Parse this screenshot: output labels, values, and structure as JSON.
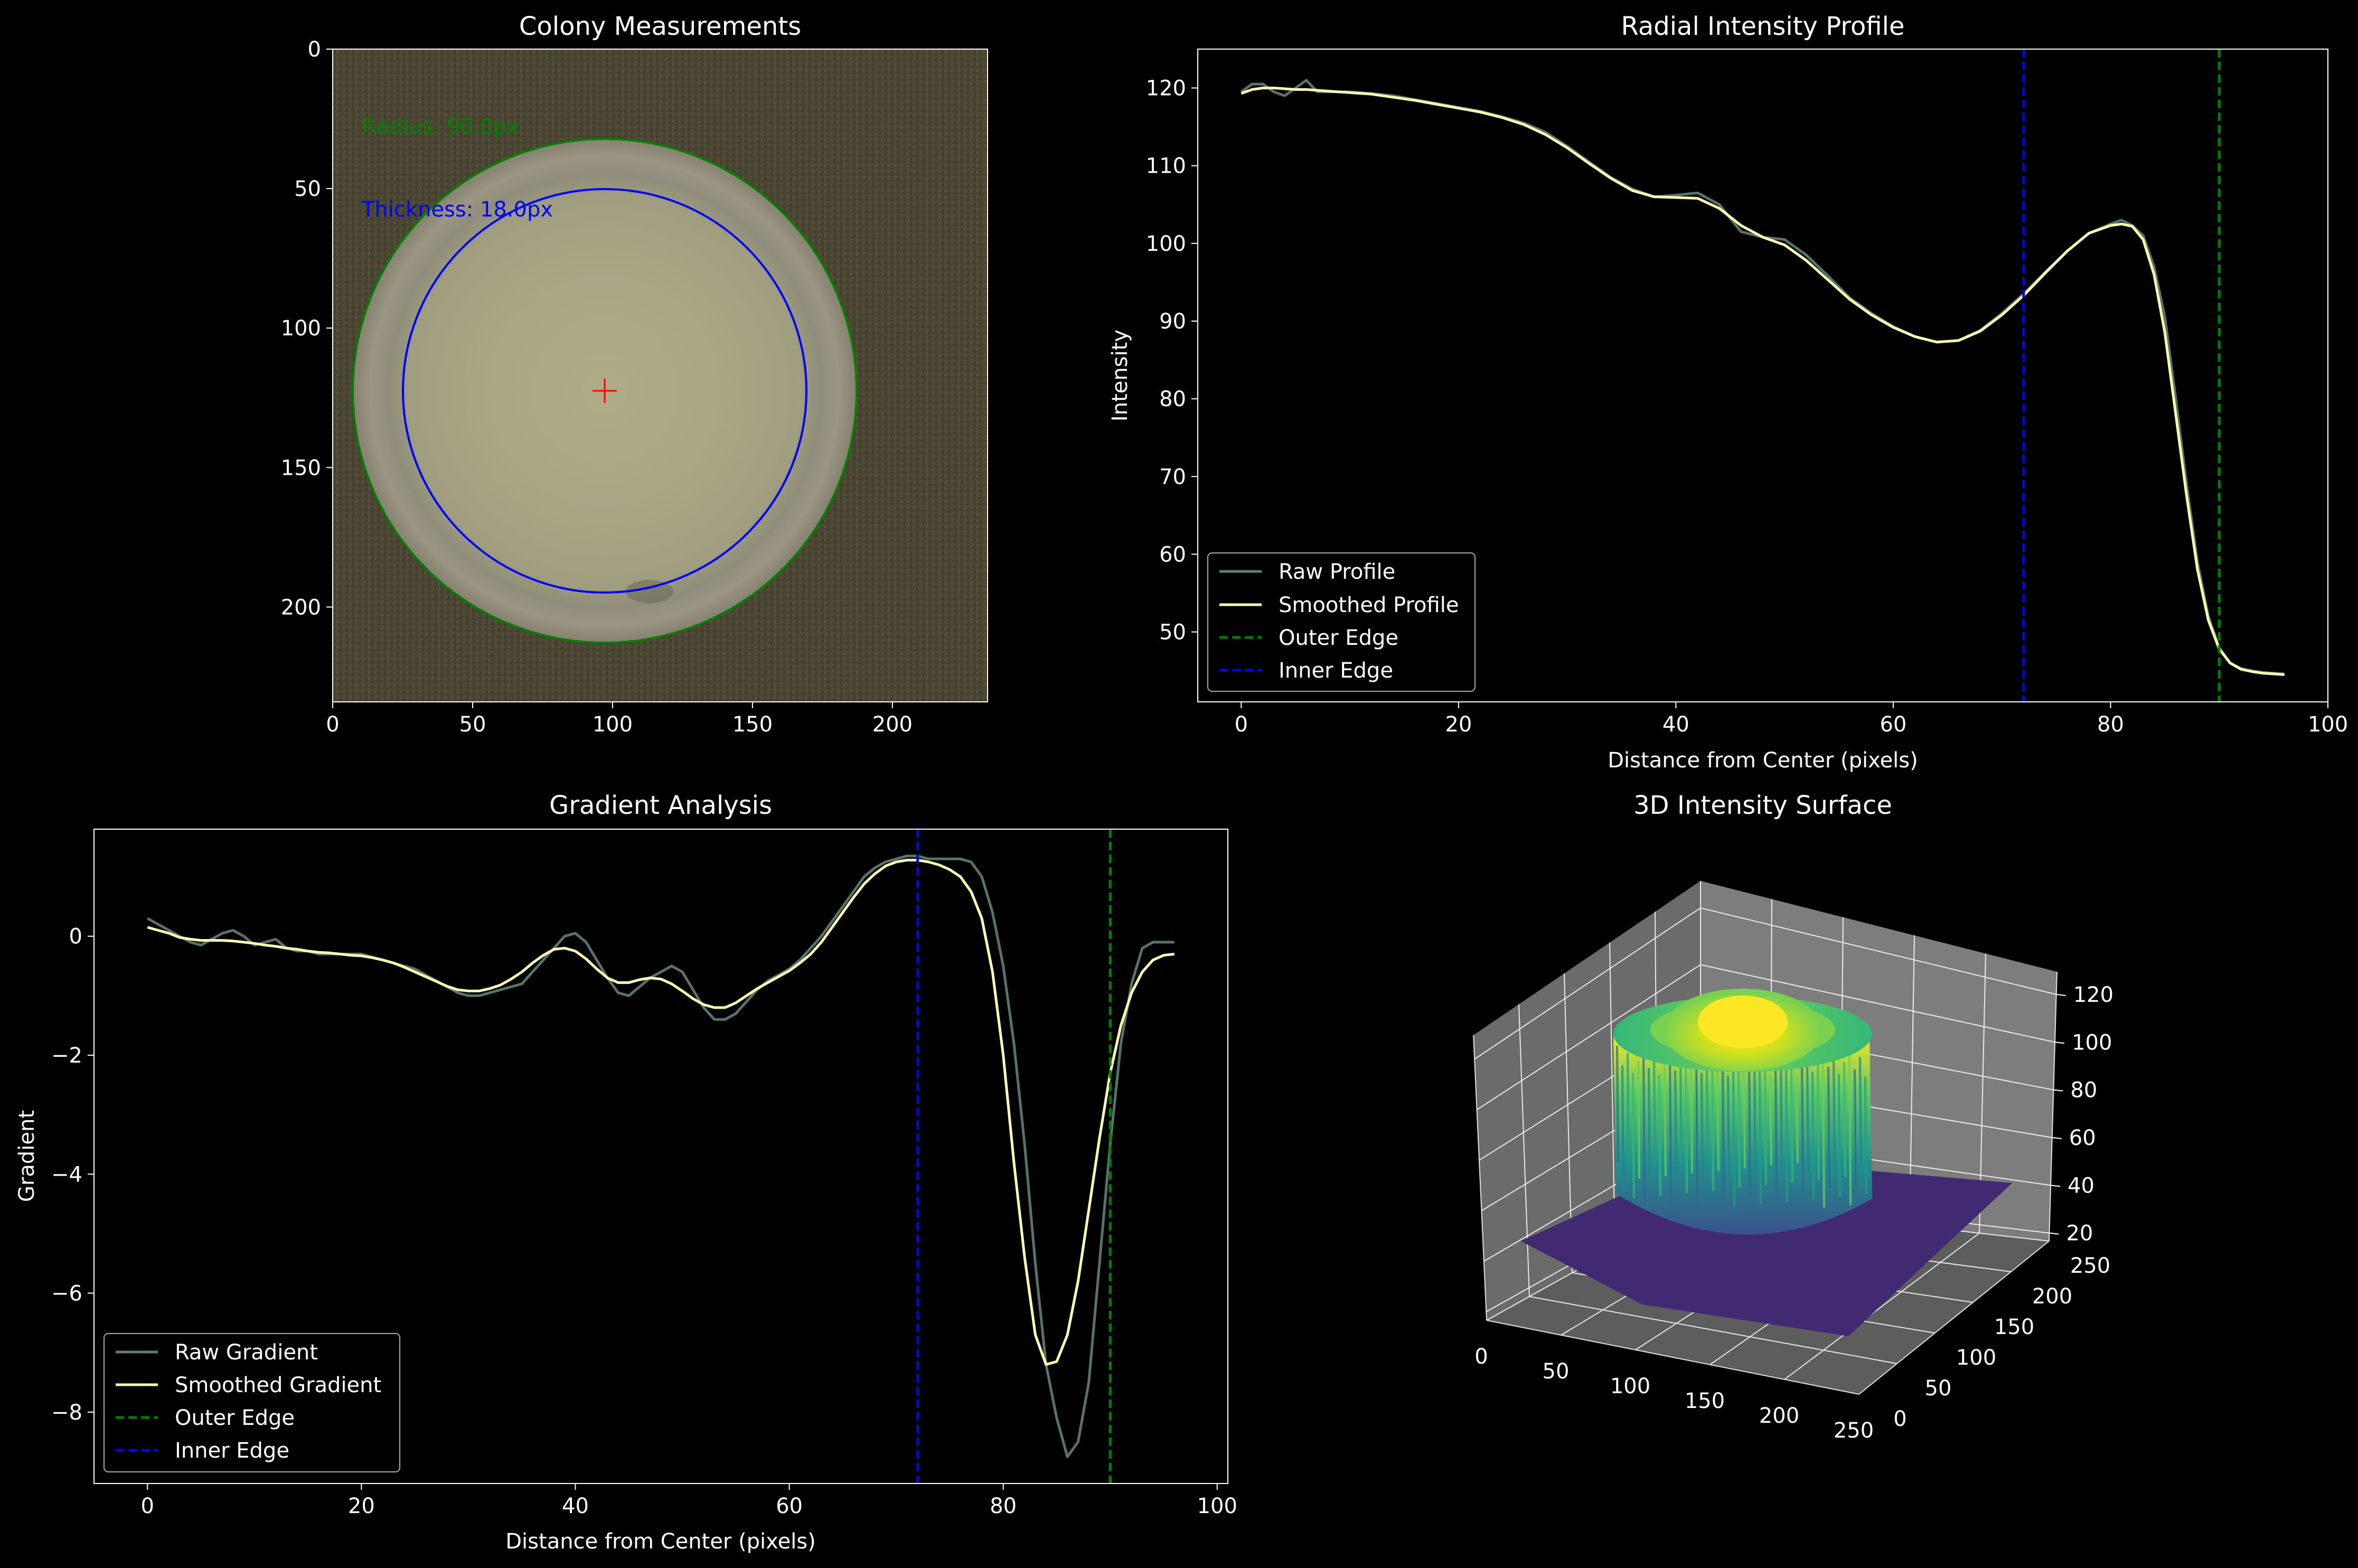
{
  "colors": {
    "background": "#000000",
    "raw": "#5f7f78",
    "smoothed": "#ffffb3",
    "outer_edge": "#008000",
    "inner_edge": "#0000ff",
    "center_marker": "#ff0000"
  },
  "chart_data": [
    {
      "type": "image",
      "title": "Colony Measurements",
      "xlim": [
        0,
        234
      ],
      "ylim": [
        234,
        0
      ],
      "xticks": [
        0,
        50,
        100,
        150,
        200
      ],
      "yticks": [
        0,
        50,
        100,
        150,
        200
      ],
      "center": [
        97,
        122
      ],
      "outer_radius": 90,
      "inner_radius": 72,
      "annotations": [
        {
          "text": "Radius: 90.0px",
          "color": "#008000"
        },
        {
          "text": "Thickness: 18.0px",
          "color": "#0000ff"
        }
      ]
    },
    {
      "type": "line",
      "title": "Radial Intensity Profile",
      "xlabel": "Distance from Center (pixels)",
      "ylabel": "Intensity",
      "xlim": [
        -4,
        100
      ],
      "ylim": [
        41,
        125
      ],
      "xticks": [
        0,
        20,
        40,
        60,
        80,
        100
      ],
      "yticks": [
        50,
        60,
        70,
        80,
        90,
        100,
        110,
        120
      ],
      "series": [
        {
          "name": "Raw Profile",
          "x": [
            0,
            1,
            2,
            3,
            4,
            5,
            6,
            7,
            8,
            10,
            12,
            14,
            16,
            18,
            20,
            22,
            24,
            26,
            28,
            30,
            32,
            34,
            36,
            38,
            40,
            42,
            44,
            46,
            48,
            50,
            52,
            54,
            56,
            58,
            60,
            62,
            64,
            66,
            68,
            70,
            72,
            74,
            76,
            78,
            80,
            81,
            82,
            83,
            84,
            85,
            86,
            87,
            88,
            89,
            90,
            91,
            92,
            93,
            94,
            95,
            96
          ],
          "values": [
            119.5,
            120.5,
            120.5,
            119.5,
            119.0,
            120.0,
            121.0,
            119.5,
            119.5,
            119.5,
            119.3,
            119.0,
            118.5,
            118.0,
            117.5,
            117.0,
            116.3,
            115.5,
            114.3,
            112.5,
            110.5,
            108.5,
            107.0,
            106.0,
            106.2,
            106.5,
            105.0,
            101.5,
            100.8,
            100.5,
            98.5,
            95.8,
            93.0,
            91.0,
            89.3,
            88.0,
            87.3,
            87.5,
            88.8,
            91.0,
            93.5,
            96.3,
            99.0,
            101.3,
            102.5,
            103.0,
            102.3,
            101.0,
            97.0,
            90.5,
            80.0,
            69.0,
            59.0,
            52.0,
            48.0,
            46.0,
            45.3,
            45.0,
            44.8,
            44.7,
            44.6
          ]
        },
        {
          "name": "Smoothed Profile",
          "x": [
            0,
            1,
            2,
            3,
            4,
            5,
            6,
            7,
            8,
            10,
            12,
            14,
            16,
            18,
            20,
            22,
            24,
            26,
            28,
            30,
            32,
            34,
            36,
            38,
            40,
            42,
            44,
            46,
            48,
            50,
            52,
            54,
            56,
            58,
            60,
            62,
            64,
            66,
            68,
            70,
            72,
            74,
            76,
            78,
            80,
            81,
            82,
            83,
            84,
            85,
            86,
            87,
            88,
            89,
            90,
            91,
            92,
            93,
            94,
            95,
            96
          ],
          "values": [
            119.3,
            119.8,
            120.0,
            120.0,
            119.9,
            119.8,
            119.8,
            119.7,
            119.6,
            119.4,
            119.2,
            118.8,
            118.4,
            117.9,
            117.4,
            116.9,
            116.2,
            115.3,
            114.0,
            112.3,
            110.3,
            108.4,
            106.8,
            106.0,
            105.9,
            105.8,
            104.5,
            102.3,
            100.8,
            99.8,
            97.8,
            95.3,
            92.8,
            90.8,
            89.2,
            88.0,
            87.3,
            87.5,
            88.7,
            90.8,
            93.3,
            96.2,
            99.0,
            101.3,
            102.3,
            102.5,
            102.2,
            100.5,
            96.0,
            88.5,
            78.0,
            67.5,
            58.0,
            51.5,
            47.8,
            46.0,
            45.2,
            44.9,
            44.7,
            44.6,
            44.5
          ]
        }
      ],
      "vlines": [
        {
          "name": "Outer Edge",
          "x": 90
        },
        {
          "name": "Inner Edge",
          "x": 72
        }
      ],
      "legend": "lower-left"
    },
    {
      "type": "line",
      "title": "Gradient Analysis",
      "xlabel": "Distance from Center (pixels)",
      "ylabel": "Gradient",
      "xlim": [
        -5,
        101
      ],
      "ylim": [
        -9.2,
        1.8
      ],
      "xticks": [
        0,
        20,
        40,
        60,
        80,
        100
      ],
      "yticks": [
        0,
        -2,
        -4,
        -6,
        -8
      ],
      "series": [
        {
          "name": "Raw Gradient",
          "x": [
            0,
            1,
            2,
            3,
            4,
            5,
            6,
            7,
            8,
            9,
            10,
            11,
            12,
            13,
            14,
            15,
            16,
            17,
            18,
            19,
            20,
            21,
            22,
            23,
            24,
            25,
            26,
            27,
            28,
            29,
            30,
            31,
            32,
            33,
            34,
            35,
            36,
            37,
            38,
            39,
            40,
            41,
            42,
            43,
            44,
            45,
            46,
            47,
            48,
            49,
            50,
            51,
            52,
            53,
            54,
            55,
            56,
            57,
            58,
            59,
            60,
            61,
            62,
            63,
            64,
            65,
            66,
            67,
            68,
            69,
            70,
            71,
            72,
            73,
            74,
            75,
            76,
            77,
            78,
            79,
            80,
            81,
            82,
            83,
            84,
            85,
            86,
            87,
            88,
            89,
            90,
            91,
            92,
            93,
            94,
            95,
            96
          ],
          "values": [
            0.3,
            0.2,
            0.1,
            0.0,
            -0.1,
            -0.15,
            -0.05,
            0.05,
            0.1,
            0.0,
            -0.15,
            -0.1,
            -0.05,
            -0.2,
            -0.25,
            -0.25,
            -0.3,
            -0.3,
            -0.3,
            -0.3,
            -0.3,
            -0.35,
            -0.4,
            -0.45,
            -0.5,
            -0.55,
            -0.65,
            -0.75,
            -0.85,
            -0.95,
            -1.0,
            -1.0,
            -0.95,
            -0.9,
            -0.85,
            -0.8,
            -0.6,
            -0.4,
            -0.2,
            0.0,
            0.05,
            -0.1,
            -0.4,
            -0.7,
            -0.95,
            -1.0,
            -0.85,
            -0.7,
            -0.6,
            -0.5,
            -0.6,
            -0.9,
            -1.2,
            -1.4,
            -1.4,
            -1.3,
            -1.1,
            -0.9,
            -0.75,
            -0.65,
            -0.55,
            -0.4,
            -0.2,
            0.0,
            0.25,
            0.5,
            0.75,
            1.0,
            1.15,
            1.25,
            1.3,
            1.35,
            1.35,
            1.3,
            1.3,
            1.3,
            1.3,
            1.25,
            1.0,
            0.4,
            -0.5,
            -1.8,
            -3.5,
            -5.5,
            -7.2,
            -8.1,
            -8.75,
            -8.5,
            -7.5,
            -5.5,
            -3.5,
            -1.8,
            -0.8,
            -0.2,
            -0.1,
            -0.1,
            -0.1
          ]
        },
        {
          "name": "Smoothed Gradient",
          "x": [
            0,
            1,
            2,
            3,
            4,
            5,
            6,
            7,
            8,
            9,
            10,
            11,
            12,
            13,
            14,
            15,
            16,
            17,
            18,
            19,
            20,
            21,
            22,
            23,
            24,
            25,
            26,
            27,
            28,
            29,
            30,
            31,
            32,
            33,
            34,
            35,
            36,
            37,
            38,
            39,
            40,
            41,
            42,
            43,
            44,
            45,
            46,
            47,
            48,
            49,
            50,
            51,
            52,
            53,
            54,
            55,
            56,
            57,
            58,
            59,
            60,
            61,
            62,
            63,
            64,
            65,
            66,
            67,
            68,
            69,
            70,
            71,
            72,
            73,
            74,
            75,
            76,
            77,
            78,
            79,
            80,
            81,
            82,
            83,
            84,
            85,
            86,
            87,
            88,
            89,
            90,
            91,
            92,
            93,
            94,
            95,
            96
          ],
          "values": [
            0.15,
            0.1,
            0.05,
            -0.02,
            -0.05,
            -0.07,
            -0.07,
            -0.07,
            -0.08,
            -0.1,
            -0.12,
            -0.15,
            -0.17,
            -0.2,
            -0.22,
            -0.25,
            -0.27,
            -0.28,
            -0.3,
            -0.32,
            -0.33,
            -0.36,
            -0.4,
            -0.45,
            -0.52,
            -0.6,
            -0.68,
            -0.76,
            -0.84,
            -0.9,
            -0.92,
            -0.92,
            -0.88,
            -0.82,
            -0.72,
            -0.6,
            -0.45,
            -0.32,
            -0.22,
            -0.2,
            -0.25,
            -0.38,
            -0.55,
            -0.7,
            -0.78,
            -0.78,
            -0.73,
            -0.7,
            -0.72,
            -0.8,
            -0.92,
            -1.05,
            -1.15,
            -1.2,
            -1.2,
            -1.12,
            -1.0,
            -0.88,
            -0.78,
            -0.68,
            -0.58,
            -0.45,
            -0.3,
            -0.1,
            0.15,
            0.4,
            0.65,
            0.88,
            1.05,
            1.18,
            1.25,
            1.28,
            1.28,
            1.25,
            1.2,
            1.12,
            1.0,
            0.75,
            0.3,
            -0.6,
            -2.0,
            -3.8,
            -5.4,
            -6.7,
            -7.2,
            -7.15,
            -6.7,
            -5.8,
            -4.6,
            -3.4,
            -2.3,
            -1.5,
            -0.95,
            -0.6,
            -0.4,
            -0.32,
            -0.3
          ]
        }
      ],
      "vlines": [
        {
          "name": "Outer Edge",
          "x": 90
        },
        {
          "name": "Inner Edge",
          "x": 72
        }
      ],
      "legend": "lower-left"
    },
    {
      "type": "surface",
      "title": "3D Intensity Surface",
      "xticks": [
        0,
        50,
        100,
        150,
        200,
        250
      ],
      "yticks": [
        0,
        50,
        100,
        150,
        200,
        250
      ],
      "zticks": [
        20,
        40,
        60,
        80,
        100,
        120
      ],
      "colormap": "viridis",
      "zlim": [
        20,
        125
      ]
    }
  ]
}
